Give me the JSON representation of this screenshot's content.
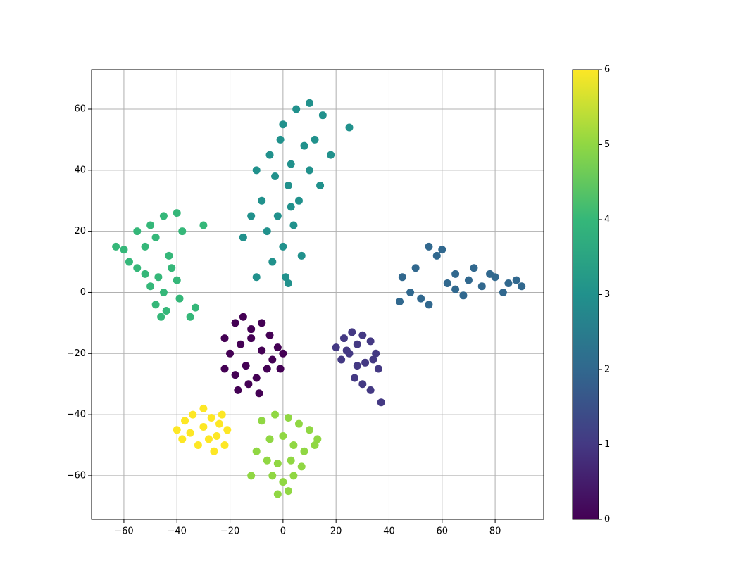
{
  "chart_data": {
    "type": "scatter",
    "x": [
      5,
      10,
      15,
      12,
      0,
      8,
      -5,
      3,
      -10,
      -3,
      2,
      6,
      -8,
      -12,
      -2,
      4,
      10,
      -6,
      0,
      -15,
      -4,
      1,
      -10,
      7,
      2,
      -1,
      3,
      14,
      18,
      25,
      -55,
      -50,
      -45,
      -40,
      -38,
      -52,
      -48,
      -43,
      -58,
      -60,
      -55,
      -47,
      -42,
      -50,
      -45,
      -40,
      -35,
      -48,
      -44,
      -39,
      -52,
      -46,
      -63,
      -30,
      -33,
      45,
      50,
      55,
      60,
      65,
      70,
      75,
      80,
      85,
      90,
      48,
      52,
      58,
      62,
      68,
      72,
      78,
      83,
      44,
      55,
      65,
      88,
      20,
      23,
      26,
      28,
      30,
      33,
      35,
      22,
      25,
      28,
      31,
      34,
      36,
      27,
      30,
      33,
      37,
      24,
      -22,
      -18,
      -15,
      -12,
      -8,
      -5,
      -2,
      0,
      -20,
      -16,
      -12,
      -8,
      -4,
      -1,
      -22,
      -18,
      -14,
      -10,
      -6,
      -17,
      -13,
      -9,
      -8,
      -3,
      2,
      6,
      10,
      13,
      -5,
      0,
      4,
      8,
      12,
      -10,
      -6,
      -2,
      3,
      7,
      -4,
      0,
      4,
      -2,
      2,
      -12,
      -40,
      -37,
      -34,
      -30,
      -27,
      -24,
      -21,
      -38,
      -35,
      -32,
      -28,
      -25,
      -22,
      -30,
      -26,
      -23
    ],
    "y": [
      60,
      62,
      58,
      50,
      55,
      48,
      45,
      42,
      40,
      38,
      35,
      30,
      30,
      25,
      25,
      22,
      40,
      20,
      15,
      18,
      10,
      5,
      5,
      12,
      3,
      50,
      28,
      35,
      45,
      54,
      20,
      22,
      25,
      26,
      20,
      15,
      18,
      12,
      10,
      14,
      8,
      5,
      8,
      2,
      0,
      4,
      -8,
      -4,
      -6,
      -2,
      6,
      -8,
      15,
      22,
      -5,
      5,
      8,
      15,
      14,
      6,
      4,
      2,
      5,
      3,
      2,
      0,
      -2,
      12,
      3,
      -1,
      8,
      6,
      0,
      -3,
      -4,
      1,
      4,
      -18,
      -15,
      -13,
      -17,
      -14,
      -16,
      -20,
      -22,
      -20,
      -24,
      -23,
      -22,
      -25,
      -28,
      -30,
      -32,
      -36,
      -19,
      -15,
      -10,
      -8,
      -12,
      -10,
      -14,
      -18,
      -20,
      -20,
      -17,
      -15,
      -19,
      -22,
      -25,
      -25,
      -27,
      -24,
      -28,
      -25,
      -32,
      -30,
      -33,
      -42,
      -40,
      -41,
      -43,
      -45,
      -48,
      -48,
      -47,
      -50,
      -52,
      -50,
      -52,
      -55,
      -56,
      -55,
      -57,
      -60,
      -62,
      -60,
      -66,
      -65,
      -60,
      -45,
      -42,
      -40,
      -44,
      -41,
      -43,
      -45,
      -48,
      -46,
      -50,
      -48,
      -47,
      -50,
      -38,
      -52,
      -40
    ],
    "c": [
      3,
      3,
      3,
      3,
      3,
      3,
      3,
      3,
      3,
      3,
      3,
      3,
      3,
      3,
      3,
      3,
      3,
      3,
      3,
      3,
      3,
      3,
      3,
      3,
      3,
      3,
      3,
      3,
      3,
      3,
      4,
      4,
      4,
      4,
      4,
      4,
      4,
      4,
      4,
      4,
      4,
      4,
      4,
      4,
      4,
      4,
      4,
      4,
      4,
      4,
      4,
      4,
      4,
      4,
      4,
      2,
      2,
      2,
      2,
      2,
      2,
      2,
      2,
      2,
      2,
      2,
      2,
      2,
      2,
      2,
      2,
      2,
      2,
      2,
      2,
      2,
      2,
      1,
      1,
      1,
      1,
      1,
      1,
      1,
      1,
      1,
      1,
      1,
      1,
      1,
      1,
      1,
      1,
      1,
      1,
      0,
      0,
      0,
      0,
      0,
      0,
      0,
      0,
      0,
      0,
      0,
      0,
      0,
      0,
      0,
      0,
      0,
      0,
      0,
      0,
      0,
      0,
      5,
      5,
      5,
      5,
      5,
      5,
      5,
      5,
      5,
      5,
      5,
      5,
      5,
      5,
      5,
      5,
      5,
      5,
      5,
      5,
      5,
      5,
      6,
      6,
      6,
      6,
      6,
      6,
      6,
      6,
      6,
      6,
      6,
      6,
      6,
      6,
      6,
      6
    ],
    "colormap": [
      "#440154",
      "#443983",
      "#31688e",
      "#21918c",
      "#35b779",
      "#90d743",
      "#fde725"
    ],
    "xlim": [
      -72.2,
      98.3
    ],
    "ylim": [
      -74.3,
      72.9
    ],
    "clim": [
      0,
      6
    ],
    "xticks": [
      {
        "value": -60,
        "label": "−60"
      },
      {
        "value": -40,
        "label": "−40"
      },
      {
        "value": -20,
        "label": "−20"
      },
      0,
      20,
      40,
      60,
      80
    ],
    "yticks": [
      {
        "value": -60,
        "label": "−60"
      },
      {
        "value": -40,
        "label": "−40"
      },
      {
        "value": -20,
        "label": "−20"
      },
      0,
      20,
      40,
      60
    ],
    "cticks": [
      0,
      1,
      2,
      3,
      4,
      5,
      6
    ],
    "grid": true
  }
}
